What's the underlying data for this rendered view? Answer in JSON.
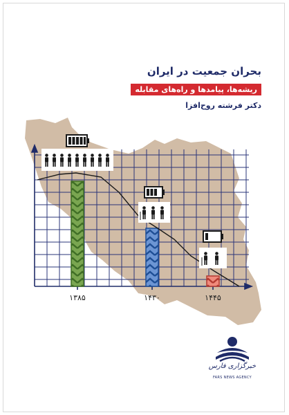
{
  "cover": {
    "title": "بحران جمعیت در ایران",
    "subtitle": "ریشه‌ها، پیامدها و راه‌های مقابله",
    "author": "دکتر فرشته روح‌افزا"
  },
  "timeline": {
    "years": [
      "۱۳۸۵",
      "۱۴۳۰",
      "۱۴۴۵"
    ]
  },
  "publisher": {
    "name_fa": "خبرگزاری فارس",
    "name_en": "FARS NEWS AGENCY"
  },
  "colors": {
    "map": "#d1bca6",
    "navy": "#1f2b68",
    "green": "#6e9a45",
    "blue": "#3c6db6",
    "red": "#e05c50"
  },
  "icons": {
    "battery_full": "battery-full-icon",
    "battery_half": "battery-half-icon",
    "battery_low": "battery-low-icon",
    "people": "people-icon"
  }
}
